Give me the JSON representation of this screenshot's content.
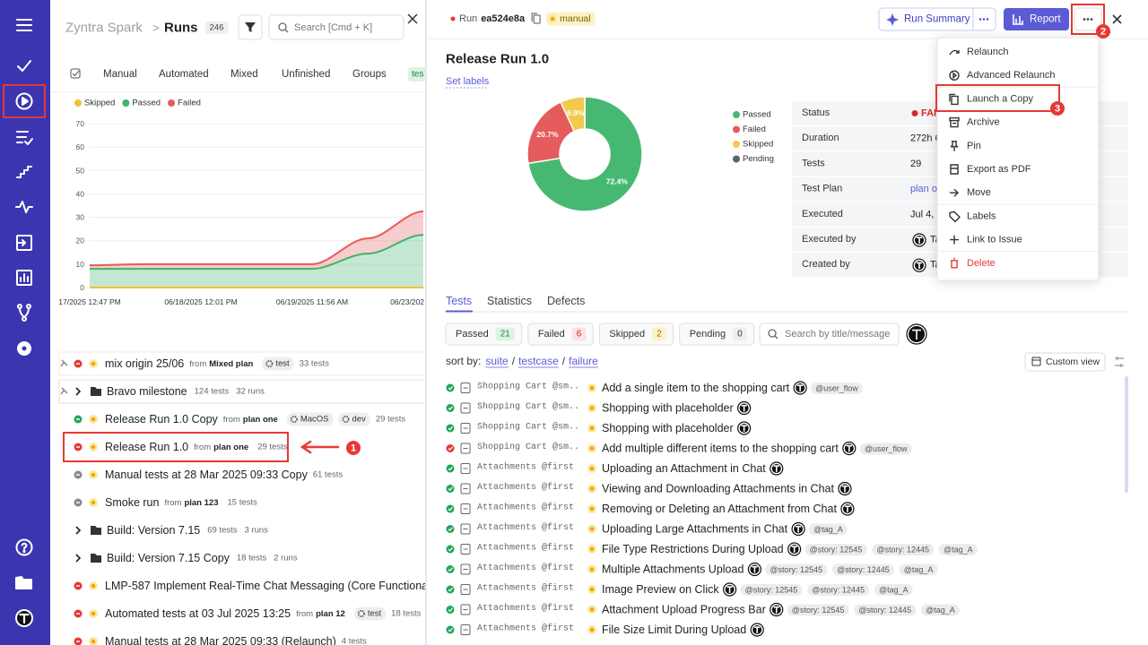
{
  "left_header": {
    "workspace": "Zyntra Spark",
    "separator": ">",
    "title": "Runs",
    "count": 246,
    "search_placeholder": "Search [Cmd + K]"
  },
  "left_tabs": [
    "Manual",
    "Automated",
    "Mixed",
    "Unfinished",
    "Groups",
    "tes"
  ],
  "runs": {
    "from_word": "from",
    "rows": [
      {
        "name": "mix origin 25/06",
        "plan": "Mixed plan",
        "tags": [
          "test"
        ],
        "count": "33 tests",
        "color": "#e53935"
      },
      {
        "name": "Bravo milestone",
        "count": "124 tests",
        "runs": "32 runs"
      },
      {
        "name": "Release Run 1.0 Copy",
        "plan": "plan one",
        "tags": [
          "MacOS",
          "dev"
        ],
        "count": "29 tests",
        "color": "#22a55a"
      },
      {
        "name": "Release Run 1.0",
        "plan": "plan one",
        "count": "29 tests",
        "color": "#e53935"
      },
      {
        "name": "Manual tests at 28 Mar 2025 09:33 Copy",
        "count": "61 tests",
        "color": "#8a8a8a"
      },
      {
        "name": "Smoke run",
        "plan": "plan 123",
        "count": "15 tests",
        "color": "#8a8a8a"
      },
      {
        "name": "Build: Version 7.15",
        "count": "69 tests",
        "runs": "3 runs"
      },
      {
        "name": "Build: Version 7.15 Copy",
        "count": "18 tests",
        "runs": "2 runs"
      },
      {
        "name": "LMP-587 Implement Real-Time Chat Messaging (Core Functionality)",
        "color": "#e53935"
      },
      {
        "name": "Automated tests at 03 Jul 2025 13:25",
        "plan": "plan 12",
        "tags": [
          "test"
        ],
        "count": "18 tests",
        "color": "#e53935"
      },
      {
        "name": "Manual tests at 28 Mar 2025 09:33 (Relaunch)",
        "count": "4 tests",
        "color": "#e53935"
      }
    ]
  },
  "chart_data": [
    {
      "type": "area",
      "stacked": true,
      "categories": [
        "17/2025 12:47 PM",
        null,
        "06/18/2025 12:01 PM",
        null,
        "06/19/2025 11:56 AM",
        null,
        "06/23/202"
      ],
      "series": [
        {
          "name": "Skipped",
          "color": "#f2c230",
          "values": [
            0,
            0,
            0,
            0,
            0,
            0,
            0
          ]
        },
        {
          "name": "Passed",
          "color": "#3fb36b",
          "values": [
            8,
            8,
            8,
            8,
            8,
            14.5,
            22.5
          ]
        },
        {
          "name": "Failed",
          "color": "#e75a5a",
          "values": [
            1.5,
            2,
            2,
            2,
            2,
            6.5,
            10
          ]
        }
      ],
      "ylim": [
        0,
        70
      ],
      "yticks": [
        0,
        10,
        20,
        30,
        40,
        50,
        60,
        70
      ],
      "grid": true
    },
    {
      "type": "pie",
      "donut": true,
      "categories": [
        "Passed",
        "Failed",
        "Skipped",
        "Pending"
      ],
      "colors": [
        "#47b872",
        "#e45c5c",
        "#f2c94c",
        "#5b6470"
      ],
      "values": [
        72.4,
        20.7,
        6.9,
        0
      ],
      "value_labels": [
        "72.4%",
        "20.7%",
        "6.9%",
        null
      ]
    }
  ],
  "run_header": {
    "run_word": "Run",
    "run_id": "ea524e8a",
    "badge": "manual",
    "run_summary": "Run Summary",
    "report": "Report"
  },
  "run_title": "Release Run 1.0",
  "set_labels": "Set labels",
  "details": [
    {
      "key": "Status",
      "value": "FAIL",
      "color": "#dc2626"
    },
    {
      "key": "Duration",
      "value": "272h 6"
    },
    {
      "key": "Tests",
      "value": "29"
    },
    {
      "key": "Test Plan",
      "value": "plan o",
      "color": "#5b5bd6"
    },
    {
      "key": "Executed",
      "value": "Jul 4,"
    },
    {
      "key": "Executed by",
      "value": "Ta"
    },
    {
      "key": "Created by",
      "value": "Ta"
    }
  ],
  "tabs": [
    "Tests",
    "Statistics",
    "Defects"
  ],
  "filters": [
    {
      "label": "Passed",
      "count": 21,
      "color": "#2e7d32",
      "bg": "#dcf3e3"
    },
    {
      "label": "Failed",
      "count": 6,
      "color": "#c62828",
      "bg": "#fde2e2"
    },
    {
      "label": "Skipped",
      "count": 2,
      "color": "#8a6d00",
      "bg": "#fdf1c7"
    },
    {
      "label": "Pending",
      "count": 0,
      "color": "#333333",
      "bg": "#eeeeee"
    }
  ],
  "test_search_placeholder": "Search by title/message",
  "sort": {
    "label": "sort by:",
    "separator": "/",
    "options": [
      "suite",
      "testcase",
      "failure"
    ]
  },
  "custom_view": "Custom view",
  "tests": [
    {
      "suite": "Shopping Cart @sm...",
      "title": "Add a single item to the shopping cart",
      "tags": [
        "@user_flow"
      ],
      "color": "#22a55a"
    },
    {
      "suite": "Shopping Cart @sm...",
      "title": "Shopping with placeholder",
      "tags": [],
      "color": "#22a55a"
    },
    {
      "suite": "Shopping Cart @sm...",
      "title": "Shopping with placeholder",
      "tags": [],
      "color": "#22a55a"
    },
    {
      "suite": "Shopping Cart @sm...",
      "title": "Add multiple different items to the shopping cart",
      "tags": [
        "@user_flow"
      ],
      "color": "#e53935"
    },
    {
      "suite": "Attachments @first",
      "title": "Uploading an Attachment in Chat",
      "tags": [],
      "color": "#22a55a"
    },
    {
      "suite": "Attachments @first",
      "title": "Viewing and Downloading Attachments in Chat",
      "tags": [],
      "color": "#22a55a"
    },
    {
      "suite": "Attachments @first",
      "title": "Removing or Deleting an Attachment from Chat",
      "tags": [],
      "color": "#22a55a"
    },
    {
      "suite": "Attachments @first",
      "title": "Uploading Large Attachments in Chat",
      "tags": [
        "@tag_A"
      ],
      "color": "#22a55a"
    },
    {
      "suite": "Attachments @first",
      "title": "File Type Restrictions During Upload",
      "tags": [
        "@story: 12545",
        "@story: 12445",
        "@tag_A"
      ],
      "color": "#22a55a"
    },
    {
      "suite": "Attachments @first",
      "title": "Multiple Attachments Upload",
      "tags": [
        "@story: 12545",
        "@story: 12445",
        "@tag_A"
      ],
      "color": "#22a55a"
    },
    {
      "suite": "Attachments @first",
      "title": "Image Preview on Click",
      "tags": [
        "@story: 12545",
        "@story: 12445",
        "@tag_A"
      ],
      "color": "#22a55a"
    },
    {
      "suite": "Attachments @first",
      "title": "Attachment Upload Progress Bar",
      "tags": [
        "@story: 12545",
        "@story: 12445",
        "@tag_A"
      ],
      "color": "#22a55a"
    },
    {
      "suite": "Attachments @first",
      "title": "File Size Limit During Upload",
      "tags": [],
      "color": "#22a55a"
    }
  ],
  "menu": [
    {
      "label": "Relaunch"
    },
    {
      "label": "Advanced Relaunch"
    },
    {
      "label": "Launch a Copy"
    },
    {
      "label": "Archive"
    },
    {
      "label": "Pin"
    },
    {
      "label": "Export as PDF"
    },
    {
      "label": "Move"
    },
    {
      "label": "Labels"
    },
    {
      "label": "Link to Issue"
    },
    {
      "label": "Delete",
      "color": "#e53935"
    }
  ],
  "annotations": [
    "1",
    "2",
    "3"
  ]
}
